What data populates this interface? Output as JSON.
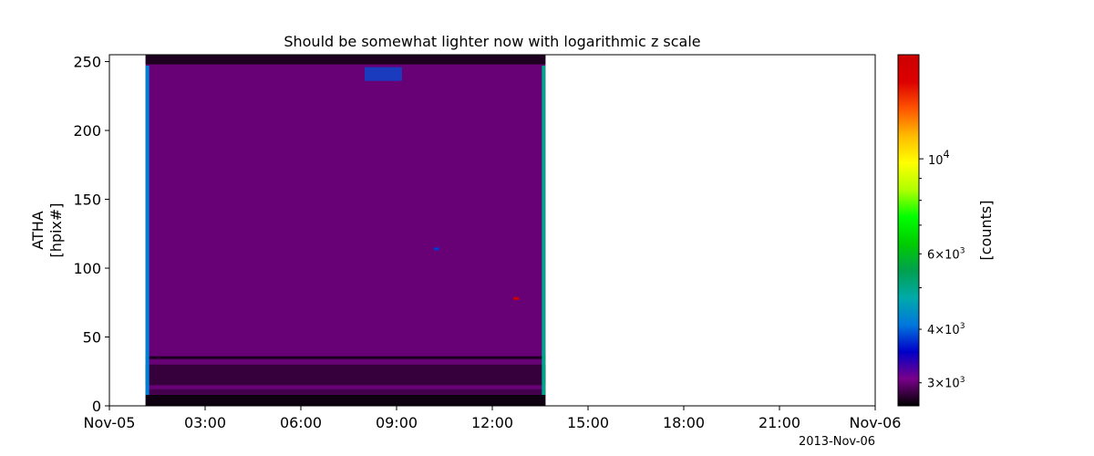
{
  "chart_data": {
    "type": "heatmap",
    "title": "Should be somewhat lighter now with logarithmic z scale",
    "ylabel_line1": "ATHA",
    "ylabel_line2": "[hpix#]",
    "x_date_label": "2013-Nov-06",
    "x_range": [
      "2013-11-05T00:00",
      "2013-11-06T00:00"
    ],
    "x_ticks": [
      {
        "t": "2013-11-05T00:00",
        "label": "Nov-05"
      },
      {
        "t": "2013-11-05T03:00",
        "label": "03:00"
      },
      {
        "t": "2013-11-05T06:00",
        "label": "06:00"
      },
      {
        "t": "2013-11-05T09:00",
        "label": "09:00"
      },
      {
        "t": "2013-11-05T12:00",
        "label": "12:00"
      },
      {
        "t": "2013-11-05T15:00",
        "label": "15:00"
      },
      {
        "t": "2013-11-05T18:00",
        "label": "18:00"
      },
      {
        "t": "2013-11-05T21:00",
        "label": "21:00"
      },
      {
        "t": "2013-11-06T00:00",
        "label": "Nov-06"
      }
    ],
    "ylim": [
      0,
      255
    ],
    "y_ticks": [
      0,
      50,
      100,
      150,
      200,
      250
    ],
    "data_start": "2013-11-05T01:08",
    "data_end": "2013-11-05T13:40",
    "zlabel": "[counts]",
    "z_scale": "log",
    "zlim": [
      2650,
      17500
    ],
    "z_ticks_major": [
      {
        "value": 10000,
        "label": "10^4"
      }
    ],
    "z_ticks_minor": [
      {
        "value": 3000,
        "label": "3×10^3"
      },
      {
        "value": 4000,
        "label": "4×10^3"
      },
      {
        "value": 6000,
        "label": "6×10^3"
      }
    ],
    "colormap": "nipy_spectral",
    "colormap_stops": [
      "#000000",
      "#7a008a",
      "#0000c8",
      "#0077dd",
      "#00aaaa",
      "#00a050",
      "#00cc00",
      "#00ff00",
      "#b0ff00",
      "#ffff00",
      "#ffbb00",
      "#ff5500",
      "#dd0000",
      "#cc0000"
    ],
    "background_count": 3000,
    "features": [
      {
        "kind": "band",
        "y": [
          0,
          8
        ],
        "count": 2650
      },
      {
        "kind": "band",
        "y": [
          8,
          12
        ],
        "count": 2850
      },
      {
        "kind": "band",
        "y": [
          15,
          30
        ],
        "count": 2800
      },
      {
        "kind": "band",
        "y": [
          34,
          36
        ],
        "count": 2700
      },
      {
        "kind": "band",
        "y": [
          248,
          255
        ],
        "count": 2700
      },
      {
        "kind": "edge",
        "t": "2013-11-05T01:08",
        "count": 4200
      },
      {
        "kind": "edge",
        "t": "2013-11-05T13:40",
        "count": 5000
      },
      {
        "kind": "patch",
        "t": [
          "2013-11-05T08:00",
          "2013-11-05T09:10"
        ],
        "y": [
          236,
          246
        ],
        "count": 3900
      },
      {
        "kind": "spot",
        "t": "2013-11-05T12:45",
        "y": 78,
        "count": 17000
      },
      {
        "kind": "spot",
        "t": "2013-11-05T10:15",
        "y": 114,
        "count": 3800
      }
    ]
  }
}
